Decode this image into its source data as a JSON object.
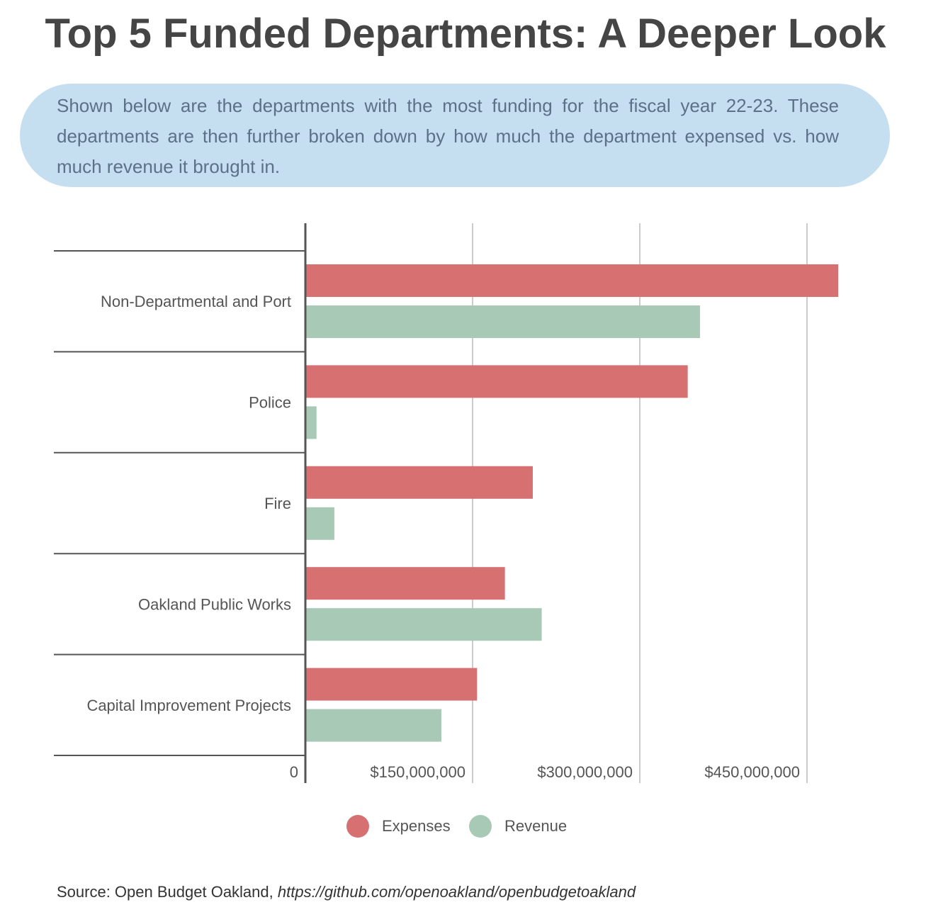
{
  "header": {
    "title": "Top 5 Funded Departments: A Deeper Look",
    "subtitle": "Shown below are the departments with the most funding for the fiscal year 22-23. These departments are then further broken down by how much the department expensed vs. how much revenue it brought in."
  },
  "colors": {
    "expenses": "#d77070",
    "revenue": "#a7c9b5",
    "grid": "#cccccc",
    "axis": "#555555"
  },
  "chart_data": {
    "type": "bar",
    "orientation": "horizontal",
    "categories": [
      "Non-Departmental and Port",
      "Police",
      "Fire",
      "Oakland Public Works",
      "Capital Improvement Projects"
    ],
    "series": [
      {
        "name": "Expenses",
        "values": [
          478000000,
          343000000,
          204000000,
          179000000,
          154000000
        ]
      },
      {
        "name": "Revenue",
        "values": [
          354000000,
          10000000,
          26000000,
          212000000,
          122000000
        ]
      }
    ],
    "xlim": [
      0,
      480000000
    ],
    "xticks": [
      0,
      150000000,
      300000000,
      450000000
    ],
    "xtick_labels": [
      "0",
      "$150,000,000",
      "$300,000,000",
      "$450,000,000"
    ],
    "grid": true,
    "legend": "bottom"
  },
  "legend": [
    {
      "label": "Expenses"
    },
    {
      "label": "Revenue"
    }
  ],
  "source": {
    "prefix": "Source: Open Budget Oakland, ",
    "url": "https://github.com/openoakland/openbudgetoakland"
  }
}
